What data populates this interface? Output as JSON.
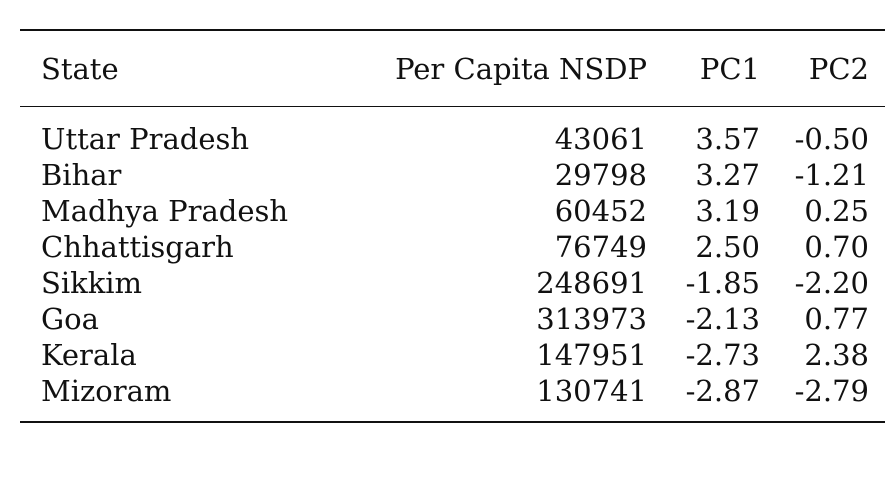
{
  "table": {
    "headers": {
      "state": "State",
      "nsdp": "Per Capita NSDP",
      "pc1": "PC1",
      "pc2": "PC2"
    },
    "rows": [
      {
        "state": "Uttar Pradesh",
        "nsdp": "43061",
        "pc1": "3.57",
        "pc2": "-0.50"
      },
      {
        "state": "Bihar",
        "nsdp": "29798",
        "pc1": "3.27",
        "pc2": "-1.21"
      },
      {
        "state": "Madhya Pradesh",
        "nsdp": "60452",
        "pc1": "3.19",
        "pc2": "0.25"
      },
      {
        "state": "Chhattisgarh",
        "nsdp": "76749",
        "pc1": "2.50",
        "pc2": "0.70"
      },
      {
        "state": "Sikkim",
        "nsdp": "248691",
        "pc1": "-1.85",
        "pc2": "-2.20"
      },
      {
        "state": "Goa",
        "nsdp": "313973",
        "pc1": "-2.13",
        "pc2": "0.77"
      },
      {
        "state": "Kerala",
        "nsdp": "147951",
        "pc1": "-2.73",
        "pc2": "2.38"
      },
      {
        "state": "Mizoram",
        "nsdp": "130741",
        "pc1": "-2.87",
        "pc2": "-2.79"
      }
    ]
  }
}
